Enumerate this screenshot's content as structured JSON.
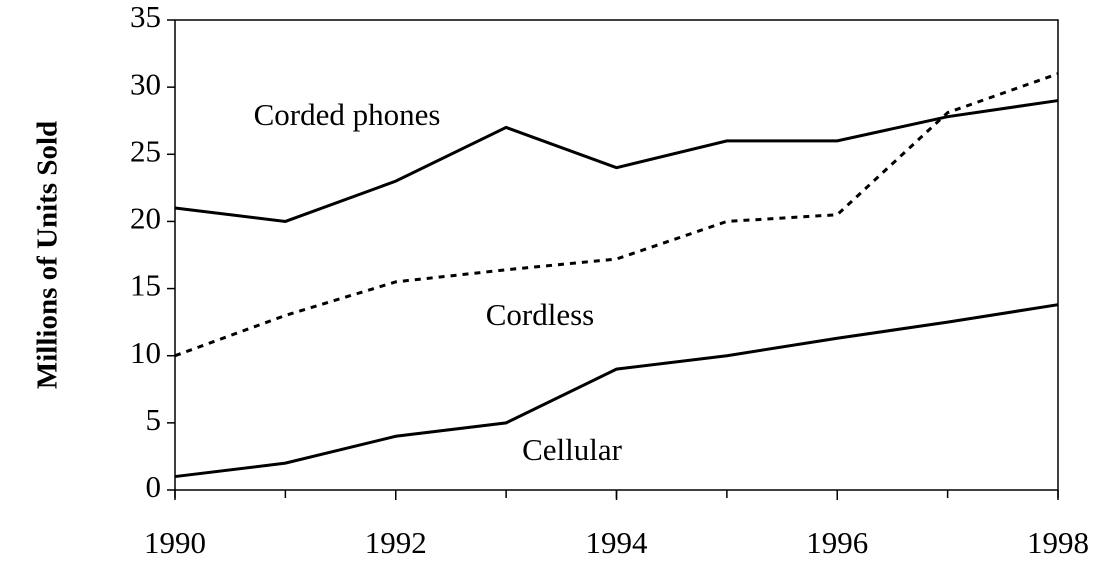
{
  "chart_data": {
    "type": "line",
    "y_label": "Millions of Units Sold",
    "x": [
      1990,
      1991,
      1992,
      1993,
      1994,
      1995,
      1996,
      1997,
      1998
    ],
    "series": [
      {
        "name": "Corded phones",
        "color": "#000000",
        "style": "solid",
        "values": [
          21,
          20,
          23,
          27,
          24,
          26,
          26,
          27.8,
          29
        ]
      },
      {
        "name": "Cordless",
        "color": "#000000",
        "style": "dotted",
        "values": [
          10,
          13,
          15.5,
          16.4,
          17.2,
          20,
          20.5,
          28.1,
          31
        ]
      },
      {
        "name": "Cellular",
        "color": "#000000",
        "style": "solid",
        "values": [
          1,
          2,
          4,
          5,
          9,
          10,
          11.3,
          12.5,
          13.8
        ]
      }
    ],
    "xlim": [
      1990,
      1998
    ],
    "xticks": [
      1990,
      1992,
      1994,
      1996,
      1998
    ],
    "ylim": [
      0,
      35
    ],
    "yticks": [
      0,
      5,
      10,
      15,
      20,
      25,
      30,
      35
    ]
  }
}
